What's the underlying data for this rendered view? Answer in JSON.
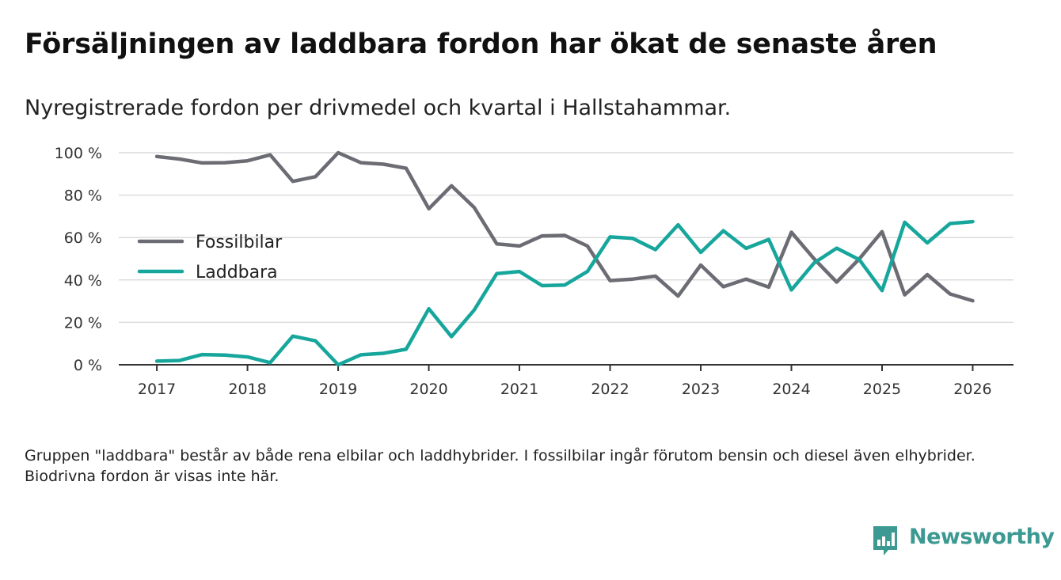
{
  "title": "Försäljningen av laddbara fordon har ökat de senaste åren",
  "subtitle": "Nyregistrerade fordon per drivmedel och kvartal i Hallstahammar.",
  "footnote": "Gruppen \"laddbara\" består av både rena elbilar och laddhybrider. I fossilbilar ingår förutom bensin och diesel även elhybrider. Biodrivna fordon är visas inte här.",
  "brand": {
    "name": "Newsworthy",
    "color": "#3d9a93",
    "icon": "bar-chart-icon"
  },
  "chart_data": {
    "type": "line",
    "title": "Försäljningen av laddbara fordon har ökat de senaste åren",
    "xlabel": "",
    "ylabel": "",
    "x": [
      2017,
      2017.25,
      2017.5,
      2017.75,
      2018,
      2018.25,
      2018.5,
      2018.75,
      2019,
      2019.25,
      2019.5,
      2019.75,
      2020,
      2020.25,
      2020.5,
      2020.75,
      2021,
      2021.25,
      2021.5,
      2021.75,
      2022,
      2022.25,
      2022.5,
      2022.75,
      2023,
      2023.25,
      2023.5,
      2023.75,
      2024,
      2024.25,
      2024.5,
      2024.75,
      2025,
      2025.25,
      2025.5,
      2025.75,
      2026
    ],
    "xlim": [
      2016.58,
      2026.45
    ],
    "xticks": [
      2017,
      2018,
      2019,
      2020,
      2021,
      2022,
      2023,
      2024,
      2025,
      2026
    ],
    "xtick_labels": [
      "2017",
      "2018",
      "2019",
      "2020",
      "2021",
      "2022",
      "2023",
      "2024",
      "2025",
      "2026"
    ],
    "ylim": [
      0,
      100
    ],
    "yticks": [
      0,
      20,
      40,
      60,
      80,
      100
    ],
    "ytick_labels": [
      "0 %",
      "20 %",
      "40 %",
      "60 %",
      "80 %",
      "100 %"
    ],
    "grid": true,
    "legend_position": "middle-left",
    "series": [
      {
        "name": "Fossilbilar",
        "color": "#6c6c74",
        "values": [
          98.2,
          97,
          95.2,
          95.3,
          96.2,
          99,
          86.5,
          88.7,
          100,
          95.3,
          94.6,
          92.7,
          73.6,
          84.4,
          74.2,
          57,
          56,
          60.8,
          61,
          56,
          39.7,
          40.4,
          41.8,
          32.4,
          47,
          36.8,
          40.4,
          36.6,
          62.5,
          50,
          39,
          50,
          62.8,
          33,
          42.5,
          33.4,
          30.2
        ]
      },
      {
        "name": "Laddbara",
        "color": "#17a69c",
        "values": [
          1.7,
          2,
          4.8,
          4.6,
          3.7,
          1,
          13.5,
          11.3,
          0,
          4.7,
          5.4,
          7.3,
          26.4,
          13.3,
          25.8,
          43,
          44,
          37.3,
          37.6,
          44,
          60.3,
          59.6,
          54.3,
          66,
          53,
          63.2,
          54.9,
          59.1,
          35.3,
          48,
          55,
          49.5,
          35,
          67.2,
          57.5,
          66.6,
          67.5
        ]
      }
    ]
  }
}
